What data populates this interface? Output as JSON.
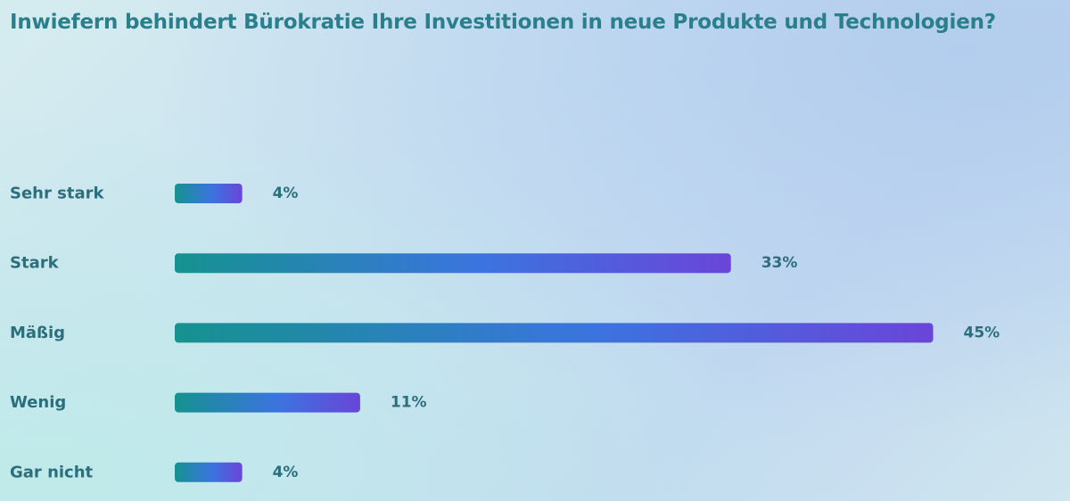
{
  "chart_data": {
    "type": "bar",
    "orientation": "horizontal",
    "title": "Inwiefern behindert Bürokratie Ihre Investitionen in neue Produkte und Technologien?",
    "categories": [
      "Sehr stark",
      "Stark",
      "Mäßig",
      "Wenig",
      "Gar nicht"
    ],
    "values": [
      4,
      33,
      45,
      11,
      4
    ],
    "value_labels": [
      "4%",
      "33%",
      "45%",
      "11%",
      "4%"
    ],
    "unit": "%",
    "grid": false,
    "legend": "none",
    "colors": {
      "bar_start": "#15928f",
      "bar_mid": "#3b74df",
      "bar_end": "#6a45d8",
      "text": "#2c6f7c",
      "title": "#2a7f8c"
    }
  }
}
